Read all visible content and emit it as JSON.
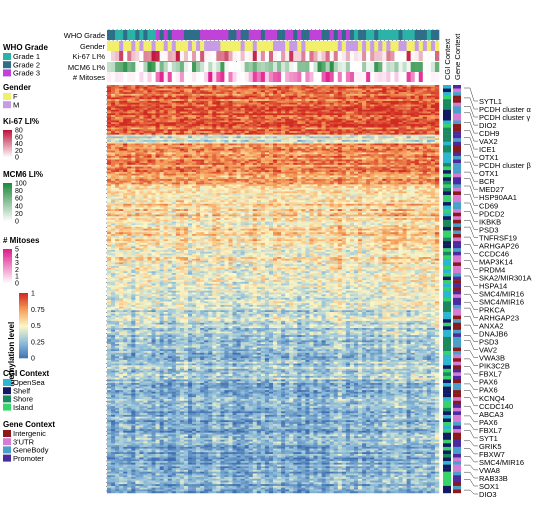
{
  "chart_data": {
    "type": "heatmap",
    "n_rows": 230,
    "n_cols": 82,
    "value_range": [
      0,
      1
    ],
    "colors": {
      "scale": [
        "#3f6eb0",
        "#8fbedb",
        "#fbf7c6",
        "#f6a15a",
        "#d12a22"
      ],
      "grade": [
        "#2bb3a8",
        "#2f6e88",
        "#c042d8"
      ],
      "gender": [
        "#f2f06a",
        "#c89be6"
      ],
      "ki67": [
        "#ffffff",
        "#c0143c"
      ],
      "mcm6": [
        "#ffffff",
        "#1f8a3c"
      ],
      "mitoses": [
        "#ffffff",
        "#e01c8c"
      ],
      "cgi": [
        "#2bb7d2",
        "#111a63",
        "#1a8a5e",
        "#38d46a"
      ],
      "context": [
        "#8b1a1a",
        "#d77bd4",
        "#4aa0c9",
        "#4a2c9f"
      ]
    },
    "annotation_labels": [
      "WHO Grade",
      "Gender",
      "Ki-67 LI%",
      "MCM6 LI%",
      "# Mitoses"
    ],
    "side_labels": [
      "CGI Context",
      "Gene Context"
    ],
    "legends": {
      "who_grade": {
        "title": "WHO Grade",
        "items": [
          "Grade 1",
          "Grade 2",
          "Grade 3"
        ]
      },
      "gender": {
        "title": "Gender",
        "items": [
          "F",
          "M"
        ]
      },
      "ki67": {
        "title": "Ki-67 LI%",
        "ticks": [
          "80",
          "60",
          "40",
          "20",
          "0"
        ]
      },
      "mcm6": {
        "title": "MCM6 LI%",
        "ticks": [
          "100",
          "80",
          "60",
          "40",
          "20",
          "0"
        ]
      },
      "mitoses": {
        "title": "# Mitoses",
        "ticks": [
          "5",
          "4",
          "3",
          "2",
          "1",
          "0"
        ]
      },
      "methylation": {
        "title": "Methylation level",
        "ticks": [
          "1",
          "0.75",
          "0.5",
          "0.25",
          "0"
        ]
      },
      "cgi_context": {
        "title": "CGI Context",
        "items": [
          "OpenSea",
          "Shelf",
          "Shore",
          "Island"
        ]
      },
      "gene_context": {
        "title": "Gene Context",
        "items": [
          "Intergenic",
          "3'UTR",
          "GeneBody",
          "Promoter"
        ]
      }
    },
    "gene_labels": [
      "SYTL1",
      "PCDH cluster α",
      "PCDH cluster γ",
      "DIO2",
      "CDH9",
      "VAX2",
      "ICE1",
      "OTX1",
      "PCDH cluster β",
      "OTX1",
      "BCR",
      "MED27",
      "HSP90AA1",
      "CD69",
      "PDCD2",
      "IKBKB",
      "PSD3",
      "TNFRSF19",
      "ARHGAP26",
      "CCDC46",
      "MAP3K14",
      "PRDM4",
      "SKA2/MIR301A",
      "HSPA14",
      "SMC4/MIR16",
      "SMC4/MIR16",
      "PRKCA",
      "ARHGAP23",
      "ANXA2",
      "DNAJB6",
      "PSD3",
      "VAV2",
      "VWA3B",
      "PIK3C2B",
      "FBXL7",
      "PAX6",
      "PAX6",
      "KCNQ4",
      "CCDC140",
      "ABCA3",
      "PAX6",
      "FBXL7",
      "SYT1",
      "GRIK5",
      "FBXW7",
      "SMC4/MIR16",
      "VWA8",
      "RAB33B",
      "SOX1",
      "DIO3"
    ]
  }
}
